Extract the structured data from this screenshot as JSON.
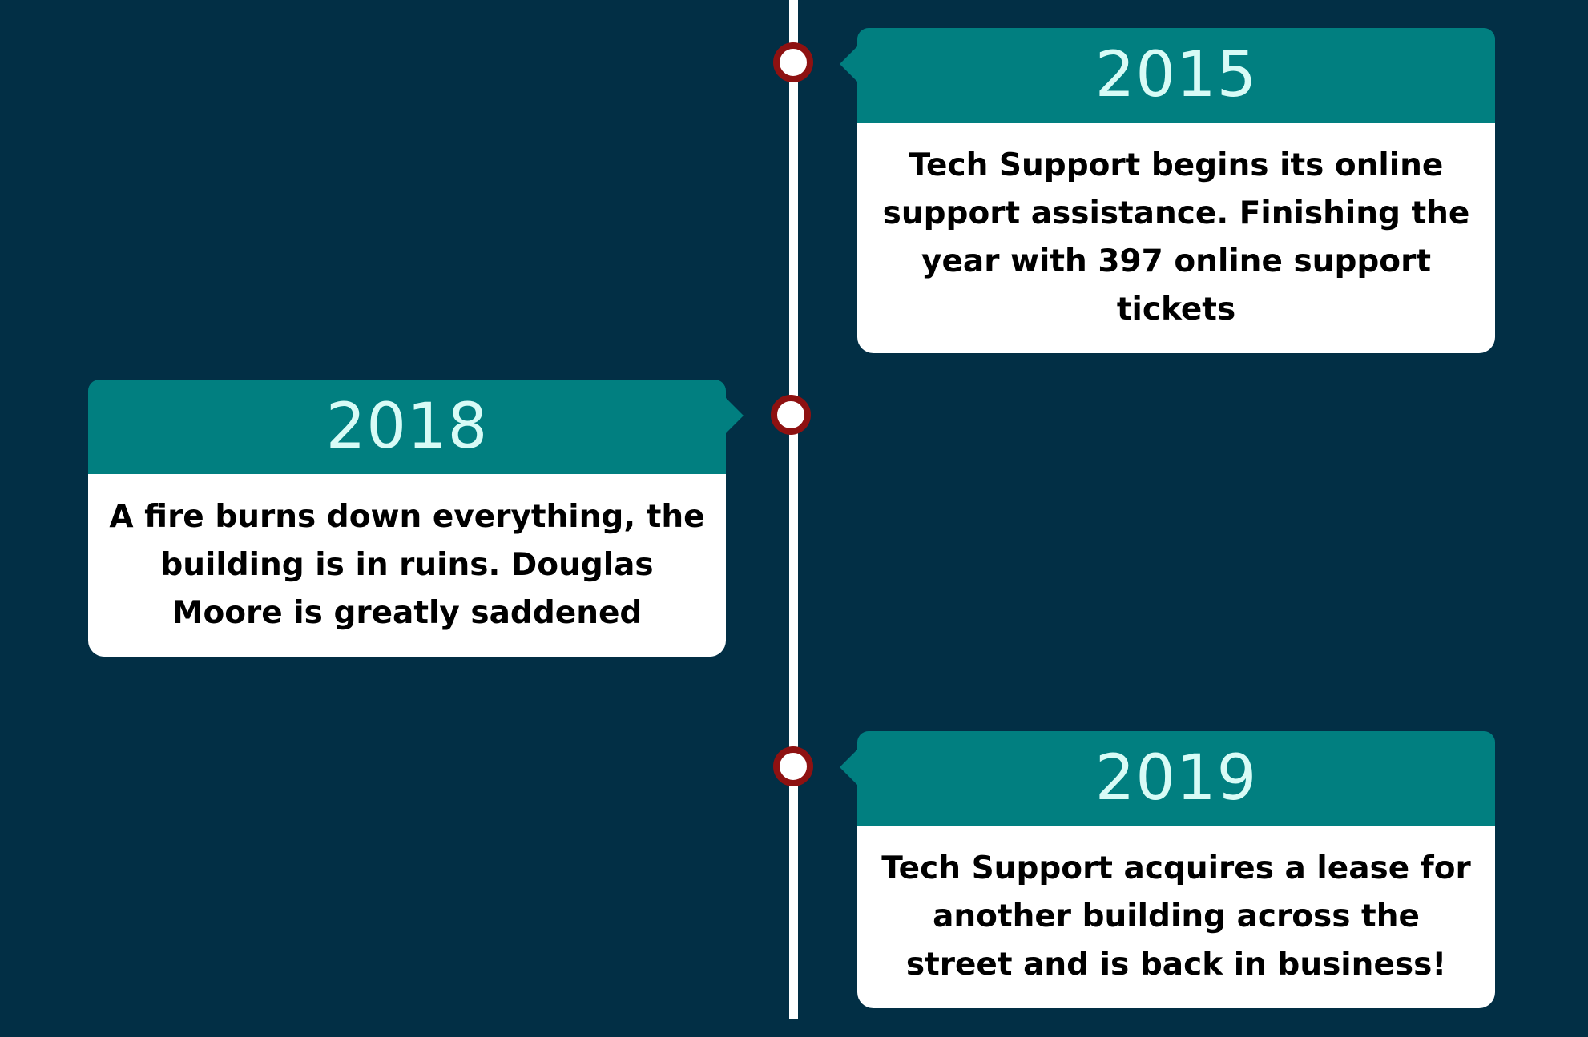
{
  "timeline": {
    "events": [
      {
        "year": "2015",
        "description": "Tech Support begins its online support assistance. Finishing the year with 397 online support tickets"
      },
      {
        "year": "2018",
        "description": "A fire burns down everything, the building is in ruins. Douglas Moore is greatly saddened"
      },
      {
        "year": "2019",
        "description": "Tech Support acquires a lease for another building across the street and is back in business!"
      }
    ]
  },
  "colors": {
    "background": "#022f45",
    "header": "#017f80",
    "year_text": "#d8fbf6",
    "dot_border": "#8e1111",
    "line": "#ffffff"
  }
}
